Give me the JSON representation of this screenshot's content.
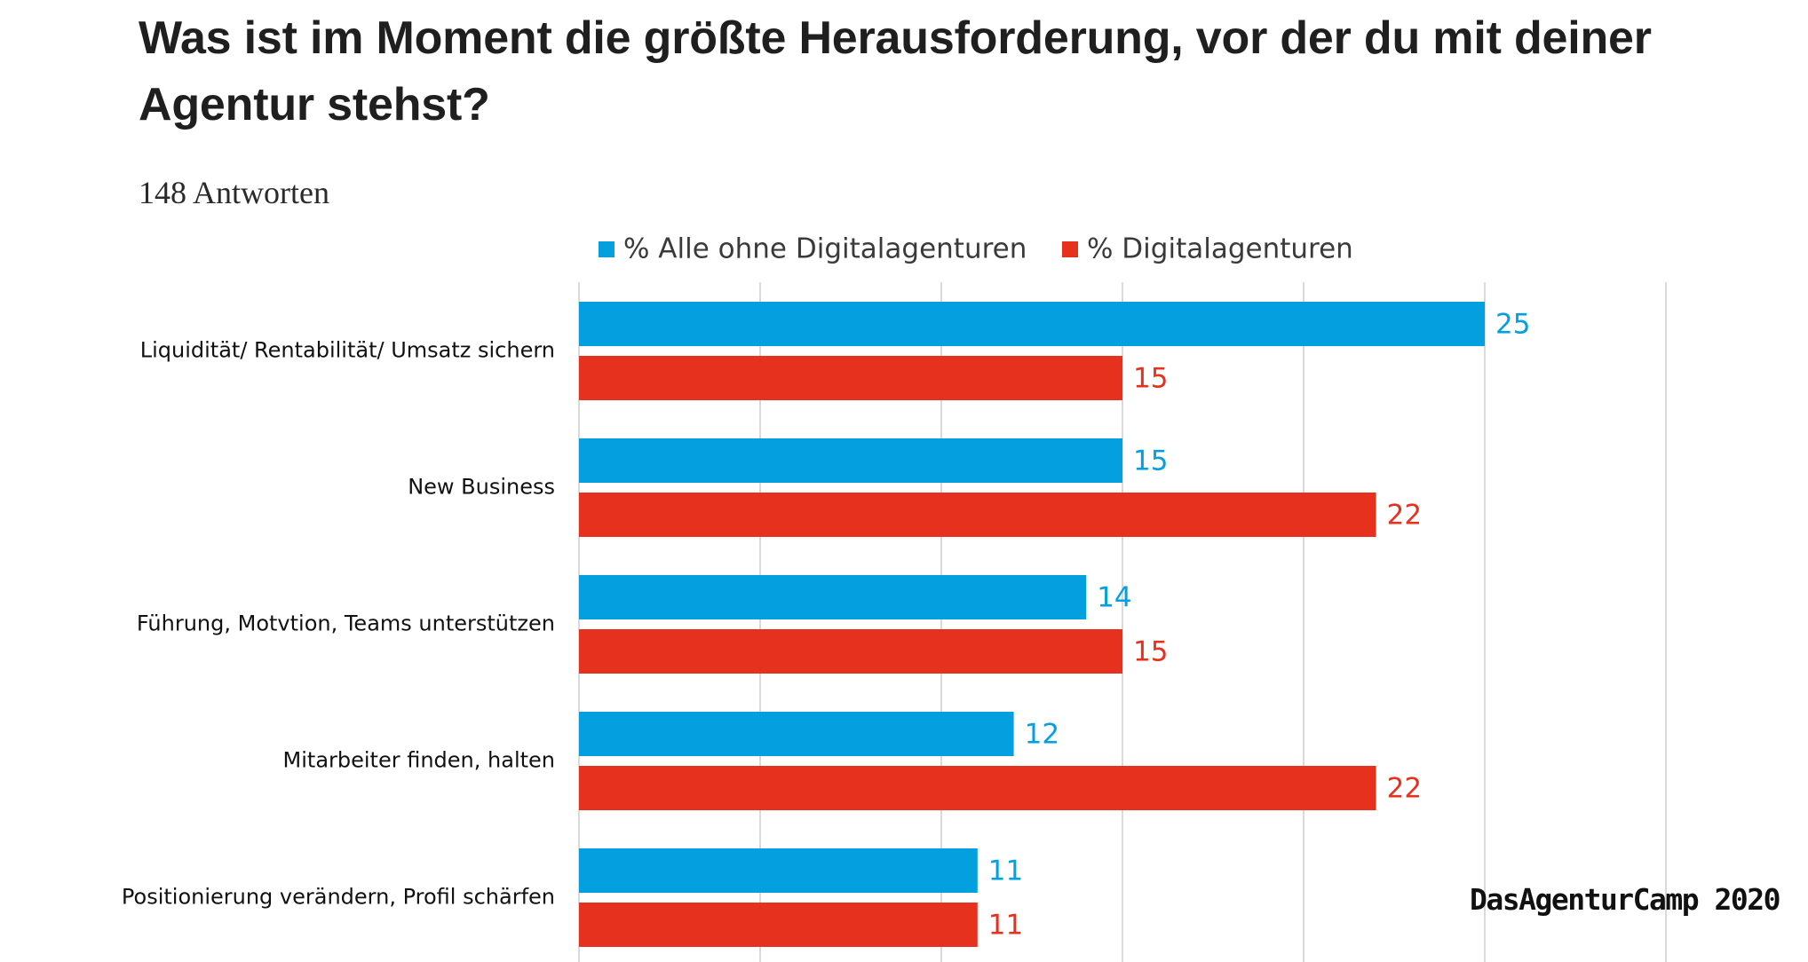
{
  "title": "Was ist im Moment die größte Herausforderung, vor der du mit deiner Agentur stehst?",
  "subtitle": "148 Antworten",
  "watermark": "DasAgenturCamp 2020",
  "colors": {
    "series_blue": "#039fdf",
    "series_red": "#e5311e",
    "gridline": "#d9d9d9",
    "category_text": "#111111"
  },
  "chart_data": {
    "type": "bar",
    "orientation": "horizontal",
    "categories": [
      "Liquidität/ Rentabilität/ Umsatz sichern",
      "New Business",
      "Führung, Motvtion, Teams unterstützen",
      "Mitarbeiter finden, halten",
      "Positionierung verändern, Profil schärfen"
    ],
    "series": [
      {
        "name": "% Alle ohne Digitalagenturen",
        "color": "#039fdf",
        "values": [
          25,
          15,
          14,
          12,
          11
        ]
      },
      {
        "name": "% Digitalagenturen",
        "color": "#e5311e",
        "values": [
          15,
          22,
          15,
          22,
          11
        ]
      }
    ],
    "xlim": [
      0,
      30
    ],
    "gridline_step": 5,
    "grid": true,
    "legend_position": "top-center",
    "data_labels": true
  }
}
